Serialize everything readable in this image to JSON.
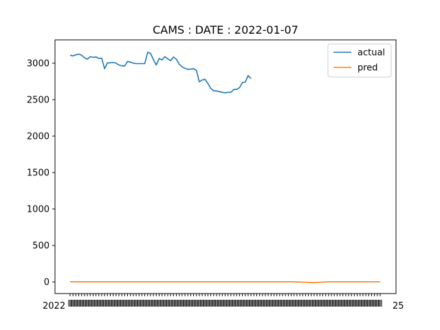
{
  "chart_data": {
    "type": "line",
    "title": "CAMS : DATE : 2022-01-07",
    "xlabel": "",
    "ylabel": "",
    "ylim": [
      -160,
      3320
    ],
    "yticks": [
      0,
      500,
      1000,
      1500,
      2000,
      2500,
      3000
    ],
    "legend_position": "upper right",
    "x_tick_label_note": "x tick labels are dates that overlap into an unreadable band; only the fragments '2022' and '25' are legible",
    "x_tick_left_fragment": "2022",
    "x_tick_right_fragment": "25",
    "series": [
      {
        "name": "actual",
        "color": "#1f77b4",
        "values": [
          3110,
          3100,
          3115,
          3125,
          3110,
          3075,
          3055,
          3090,
          3080,
          3085,
          3065,
          3070,
          2925,
          3005,
          3005,
          3010,
          3000,
          2975,
          2965,
          2960,
          3025,
          3015,
          3000,
          2995,
          2995,
          2995,
          2995,
          3150,
          3135,
          3050,
          2975,
          3065,
          3045,
          3090,
          3060,
          3035,
          3085,
          3055,
          2985,
          2950,
          2930,
          2915,
          2920,
          2925,
          2900,
          2745,
          2770,
          2780,
          2720,
          2655,
          2620,
          2620,
          2610,
          2600,
          2595,
          2600,
          2600,
          2640,
          2640,
          2665,
          2735,
          2740,
          2830,
          2790
        ]
      },
      {
        "name": "pred",
        "color": "#ff7f0e",
        "values": [
          2,
          2,
          2,
          2,
          2,
          2,
          2,
          2,
          2,
          2,
          2,
          2,
          2,
          2,
          2,
          2,
          2,
          2,
          2,
          2,
          2,
          2,
          2,
          2,
          2,
          2,
          2,
          2,
          2,
          2,
          2,
          2,
          2,
          2,
          2,
          2,
          2,
          2,
          2,
          2,
          2,
          2,
          2,
          2,
          2,
          2,
          2,
          2,
          2,
          2,
          2,
          2,
          2,
          2,
          2,
          2,
          2,
          2,
          2,
          2,
          2,
          2,
          2,
          2,
          2,
          2,
          2,
          2,
          2,
          2,
          2,
          2,
          2,
          2,
          2,
          2,
          2,
          2,
          0,
          -2,
          -2,
          -3,
          -4,
          -6,
          -8,
          -8,
          -7,
          -5,
          -3,
          0,
          2,
          2,
          2,
          2,
          2,
          2,
          2,
          2,
          2,
          2,
          2,
          2,
          2,
          2,
          2,
          2,
          2,
          2,
          2
        ]
      }
    ]
  }
}
